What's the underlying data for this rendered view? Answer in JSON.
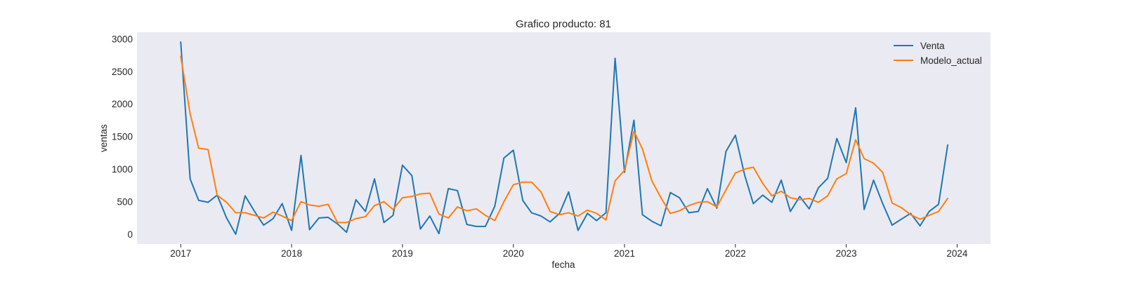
{
  "chart_data": {
    "type": "line",
    "title": "Grafico producto: 81",
    "xlabel": "fecha",
    "ylabel": "ventas",
    "xlim": [
      "2016-08-10",
      "2024-04-20"
    ],
    "ylim": [
      -150,
      3100
    ],
    "x_ticks": [
      "2017",
      "2018",
      "2019",
      "2020",
      "2021",
      "2022",
      "2023",
      "2024"
    ],
    "y_ticks": [
      0,
      500,
      1000,
      1500,
      2000,
      2500,
      3000
    ],
    "grid": false,
    "legend": "top-right",
    "x": [
      "2017-01",
      "2017-02",
      "2017-03",
      "2017-04",
      "2017-05",
      "2017-06",
      "2017-07",
      "2017-08",
      "2017-09",
      "2017-10",
      "2017-11",
      "2017-12",
      "2018-01",
      "2018-02",
      "2018-03",
      "2018-04",
      "2018-05",
      "2018-06",
      "2018-07",
      "2018-08",
      "2018-09",
      "2018-10",
      "2018-11",
      "2018-12",
      "2019-01",
      "2019-02",
      "2019-03",
      "2019-04",
      "2019-05",
      "2019-06",
      "2019-07",
      "2019-08",
      "2019-09",
      "2019-10",
      "2019-11",
      "2019-12",
      "2020-01",
      "2020-02",
      "2020-03",
      "2020-04",
      "2020-05",
      "2020-06",
      "2020-07",
      "2020-08",
      "2020-09",
      "2020-10",
      "2020-11",
      "2020-12",
      "2021-01",
      "2021-02",
      "2021-03",
      "2021-04",
      "2021-05",
      "2021-06",
      "2021-07",
      "2021-08",
      "2021-09",
      "2021-10",
      "2021-11",
      "2021-12",
      "2022-01",
      "2022-02",
      "2022-03",
      "2022-04",
      "2022-05",
      "2022-06",
      "2022-07",
      "2022-08",
      "2022-09",
      "2022-10",
      "2022-11",
      "2022-12",
      "2023-01",
      "2023-02",
      "2023-03",
      "2023-04",
      "2023-05",
      "2023-06",
      "2023-07",
      "2023-08",
      "2023-09",
      "2023-10",
      "2023-11",
      "2023-12"
    ],
    "series": [
      {
        "name": "Venta",
        "color": "#1f77b4",
        "values": [
          2950,
          850,
          520,
          490,
          600,
          250,
          0,
          590,
          350,
          140,
          240,
          470,
          60,
          1210,
          70,
          250,
          260,
          160,
          30,
          530,
          350,
          850,
          180,
          290,
          1060,
          900,
          80,
          280,
          10,
          700,
          670,
          150,
          120,
          120,
          430,
          1170,
          1290,
          520,
          330,
          280,
          190,
          320,
          650,
          60,
          320,
          210,
          330,
          2700,
          950,
          1750,
          300,
          200,
          130,
          640,
          560,
          330,
          350,
          700,
          400,
          1270,
          1520,
          900,
          470,
          600,
          490,
          830,
          350,
          580,
          390,
          710,
          860,
          1470,
          1100,
          1940,
          380,
          830,
          470,
          140,
          230,
          320,
          130,
          350,
          460,
          1370
        ]
      },
      {
        "name": "Modelo_actual",
        "color": "#ff7f0e",
        "values": [
          2730,
          1850,
          1320,
          1300,
          600,
          490,
          330,
          330,
          290,
          250,
          340,
          280,
          210,
          500,
          450,
          430,
          460,
          180,
          180,
          240,
          270,
          440,
          500,
          380,
          560,
          580,
          620,
          630,
          310,
          250,
          420,
          360,
          390,
          290,
          210,
          500,
          760,
          800,
          800,
          650,
          350,
          300,
          330,
          280,
          370,
          320,
          220,
          820,
          980,
          1580,
          1310,
          820,
          560,
          320,
          360,
          440,
          490,
          500,
          420,
          680,
          940,
          1000,
          1030,
          780,
          590,
          660,
          560,
          530,
          550,
          490,
          590,
          850,
          930,
          1450,
          1160,
          1090,
          950,
          480,
          410,
          300,
          230,
          290,
          350,
          550
        ]
      }
    ]
  }
}
